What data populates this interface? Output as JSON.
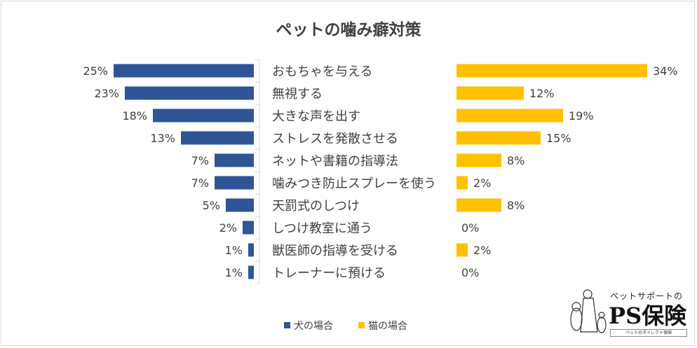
{
  "chart_data": {
    "type": "bar",
    "orientation": "horizontal-butterfly",
    "title": "ペットの噛み癖対策",
    "categories": [
      "おもちゃを与える",
      "無視する",
      "大きな声を出す",
      "ストレスを発散させる",
      "ネットや書籍の指導法",
      "噛みつき防止スプレーを使う",
      "天罰式のしつけ",
      "しつけ教室に通う",
      "獣医師の指導を受ける",
      "トレーナーに預ける"
    ],
    "series": [
      {
        "name": "犬の場合",
        "color": "#2F5597",
        "values": [
          25,
          23,
          18,
          13,
          7,
          7,
          5,
          2,
          1,
          1
        ],
        "side": "left"
      },
      {
        "name": "猫の場合",
        "color": "#FFC000",
        "values": [
          34,
          12,
          19,
          15,
          8,
          2,
          8,
          0,
          2,
          0
        ],
        "side": "right"
      }
    ],
    "value_suffix": "%",
    "grid": false,
    "legend_placement": "bottom"
  },
  "logo": {
    "sub": "ペットサポートの",
    "main": "PS保険",
    "tag": "ペットのダイレクト保険"
  }
}
